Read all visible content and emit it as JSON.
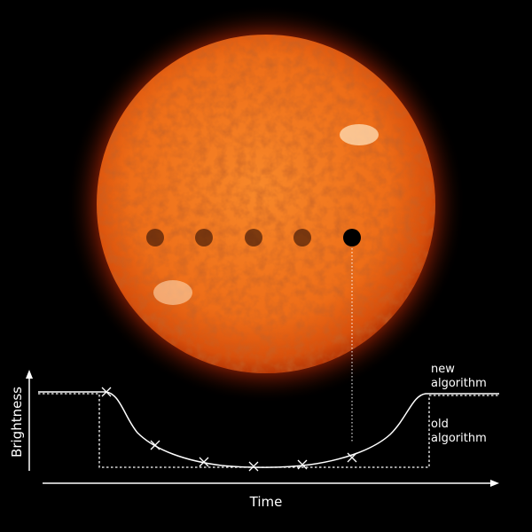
{
  "labels": {
    "y_axis": "Brightness",
    "x_axis": "Time",
    "new_algorithm_line1": "new",
    "new_algorithm_line2": "algorithm",
    "old_algorithm_line1": "old",
    "old_algorithm_line2": "algorithm"
  },
  "colors": {
    "background": "#000000",
    "sun_core": "#f27a1e",
    "sun_edge": "#c23a08",
    "curve": "#ffffff"
  },
  "transit_positions": 5,
  "icons": {
    "measurement_marker": "x-mark"
  }
}
